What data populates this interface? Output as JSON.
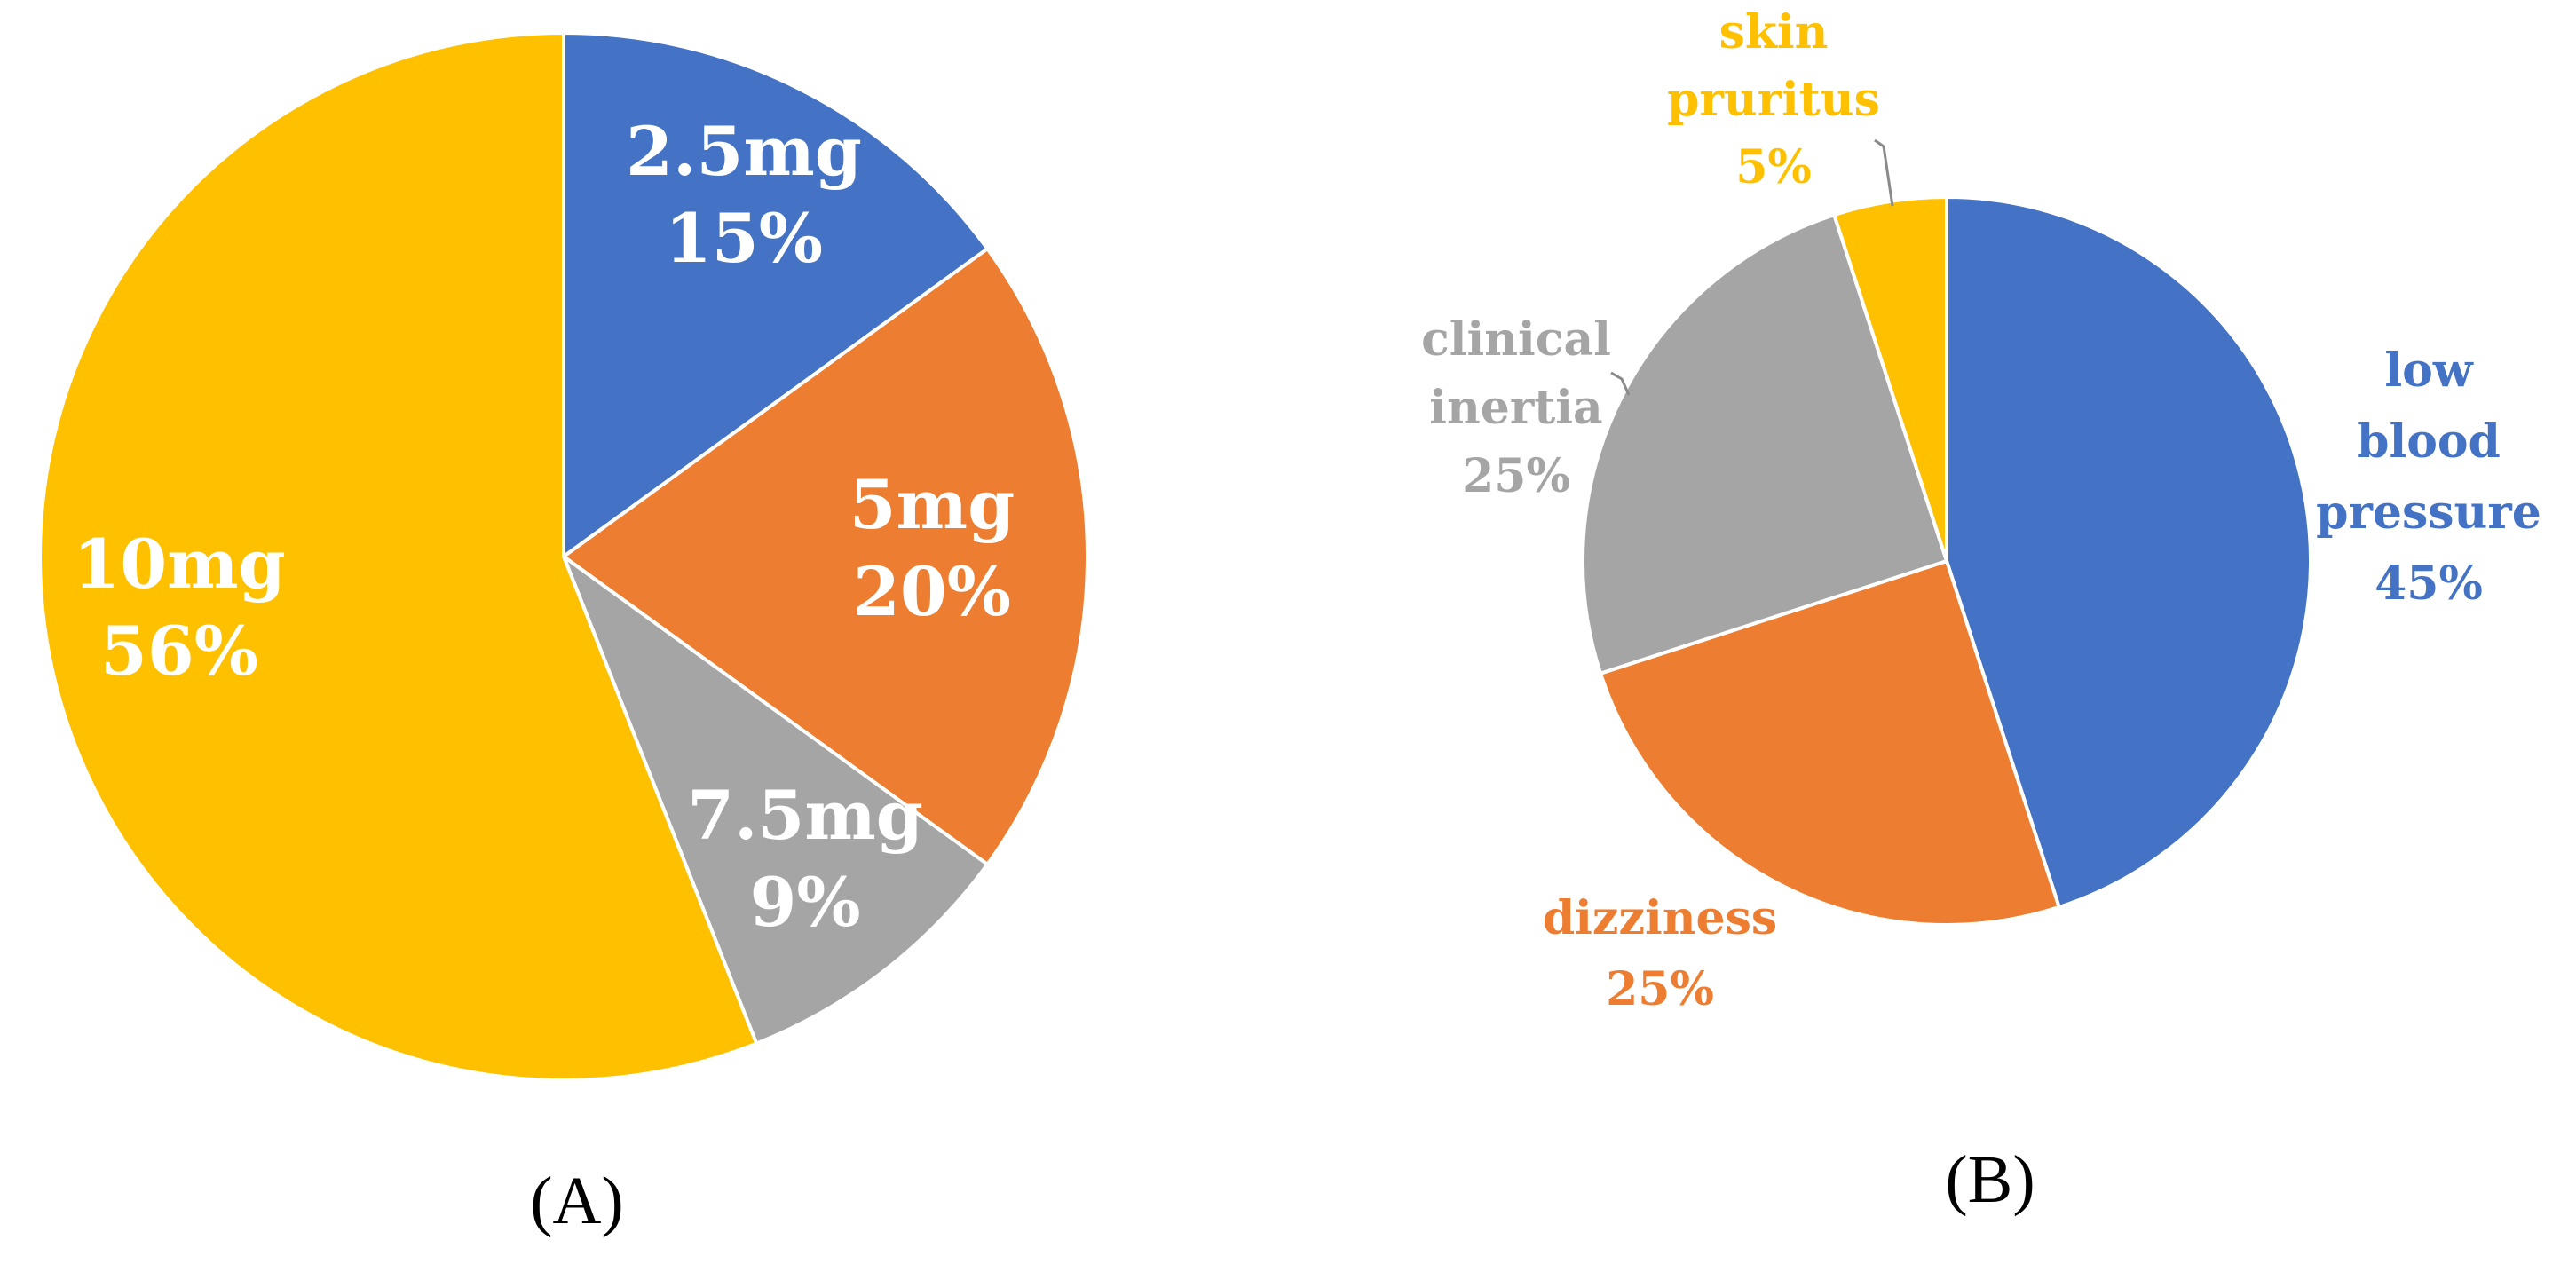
{
  "colors": {
    "blue": "#4472C4",
    "orange": "#ED7D31",
    "gray": "#A5A5A5",
    "yellow": "#FFC000",
    "white": "#FFFFFF",
    "caption": "#000000"
  },
  "chart_data": [
    {
      "type": "pie",
      "caption": "(A)",
      "title": "",
      "slices": [
        {
          "label": "2.5mg",
          "value": 15,
          "value_text": "15%",
          "color": "#4472C4"
        },
        {
          "label": "5mg",
          "value": 20,
          "value_text": "20%",
          "color": "#ED7D31"
        },
        {
          "label": "7.5mg",
          "value": 9,
          "value_text": "9%",
          "color": "#A5A5A5"
        },
        {
          "label": "10mg",
          "value": 56,
          "value_text": "56%",
          "color": "#FFC000"
        }
      ],
      "label_placement": "inside"
    },
    {
      "type": "pie",
      "caption": "(B)",
      "title": "",
      "slices": [
        {
          "label": "low blood pressure",
          "label_lines": [
            "low",
            "blood",
            "pressure"
          ],
          "value": 45,
          "value_text": "45%",
          "color": "#4472C4"
        },
        {
          "label": "dizziness",
          "label_lines": [
            "dizziness"
          ],
          "value": 25,
          "value_text": "25%",
          "color": "#ED7D31"
        },
        {
          "label": "clinical inertia",
          "label_lines": [
            "clinical",
            "inertia"
          ],
          "value": 25,
          "value_text": "25%",
          "color": "#A5A5A5"
        },
        {
          "label": "skin pruritus",
          "label_lines": [
            "skin",
            "pruritus"
          ],
          "value": 5,
          "value_text": "5%",
          "color": "#FFC000"
        }
      ],
      "label_placement": "outside"
    }
  ]
}
